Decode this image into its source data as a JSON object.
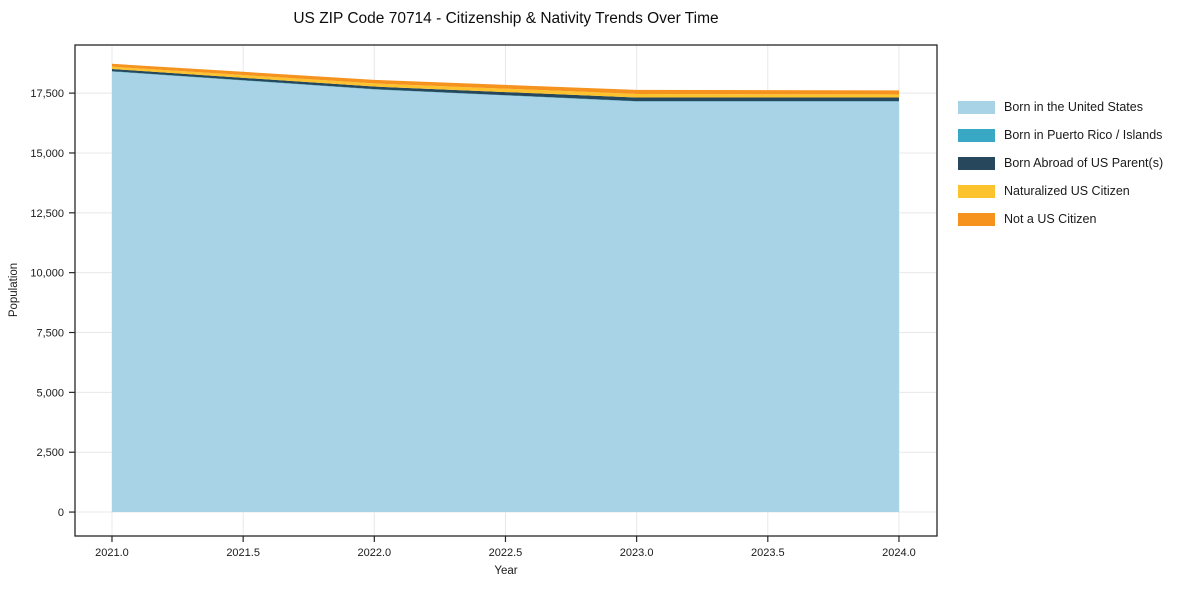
{
  "chart_data": {
    "type": "area",
    "stacked": true,
    "title": "US ZIP Code 70714 - Citizenship & Nativity Trends Over Time",
    "xlabel": "Year",
    "ylabel": "Population",
    "x": [
      2021,
      2022,
      2023,
      2024
    ],
    "series": [
      {
        "name": "Born in the United States",
        "color": "#a8d2e6",
        "values": [
          18400,
          17650,
          17150,
          17150
        ]
      },
      {
        "name": "Born in Puerto Rico / Islands",
        "color": "#38a8c5",
        "values": [
          15,
          15,
          15,
          15
        ]
      },
      {
        "name": "Born Abroad of US Parent(s)",
        "color": "#27485c",
        "values": [
          90,
          110,
          150,
          150
        ]
      },
      {
        "name": "Naturalized US Citizen",
        "color": "#fcc32f",
        "values": [
          100,
          130,
          150,
          130
        ]
      },
      {
        "name": "Not a US Citizen",
        "color": "#f6921e",
        "values": [
          120,
          150,
          170,
          170
        ]
      }
    ],
    "xticks": [
      2021.0,
      2021.5,
      2022.0,
      2022.5,
      2023.0,
      2023.5,
      2024.0
    ],
    "yticks": [
      0,
      2500,
      5000,
      7500,
      10000,
      12500,
      15000,
      17500
    ],
    "xlim": [
      2020.859,
      2024.145
    ],
    "ylim": [
      -1000,
      19510
    ],
    "grid": true,
    "legend_position": "right-outside",
    "style": {
      "background": "#ffffff",
      "grid_color": "#e8e8e8",
      "spine_color": "#262626",
      "tick_color": "#262626"
    }
  }
}
